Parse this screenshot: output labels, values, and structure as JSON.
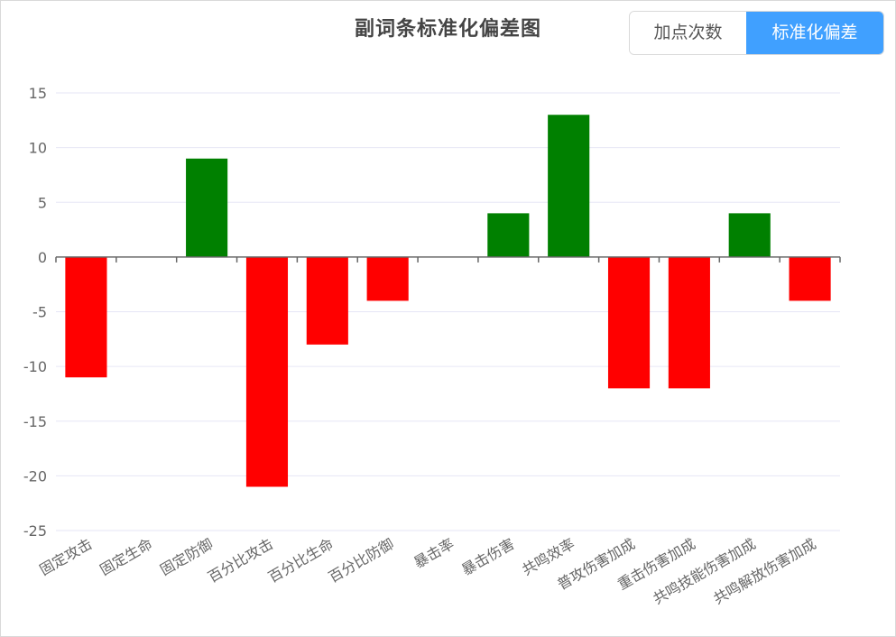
{
  "toggle": {
    "count_label": "加点次数",
    "std_label": "标准化偏差",
    "active": "std"
  },
  "colors": {
    "positive": "#008000",
    "negative": "#ff0000",
    "grid": "#e6e6f5",
    "axis": "#666666",
    "active_button": "#40a0ff"
  },
  "chart_data": {
    "type": "bar",
    "title": "副词条标准化偏差图",
    "xlabel": "",
    "ylabel": "",
    "categories": [
      "固定攻击",
      "固定生命",
      "固定防御",
      "百分比攻击",
      "百分比生命",
      "百分比防御",
      "暴击率",
      "暴击伤害",
      "共鸣效率",
      "普攻伤害加成",
      "重击伤害加成",
      "共鸣技能伤害加成",
      "共鸣解放伤害加成"
    ],
    "values": [
      -11,
      0,
      9,
      -21,
      -8,
      -4,
      0,
      4,
      13,
      -12,
      -12,
      4,
      -4
    ],
    "ylim": [
      -25,
      15
    ],
    "yticks": [
      15,
      10,
      5,
      0,
      -5,
      -10,
      -15,
      -20,
      -25
    ],
    "grid": true,
    "legend": "none"
  }
}
